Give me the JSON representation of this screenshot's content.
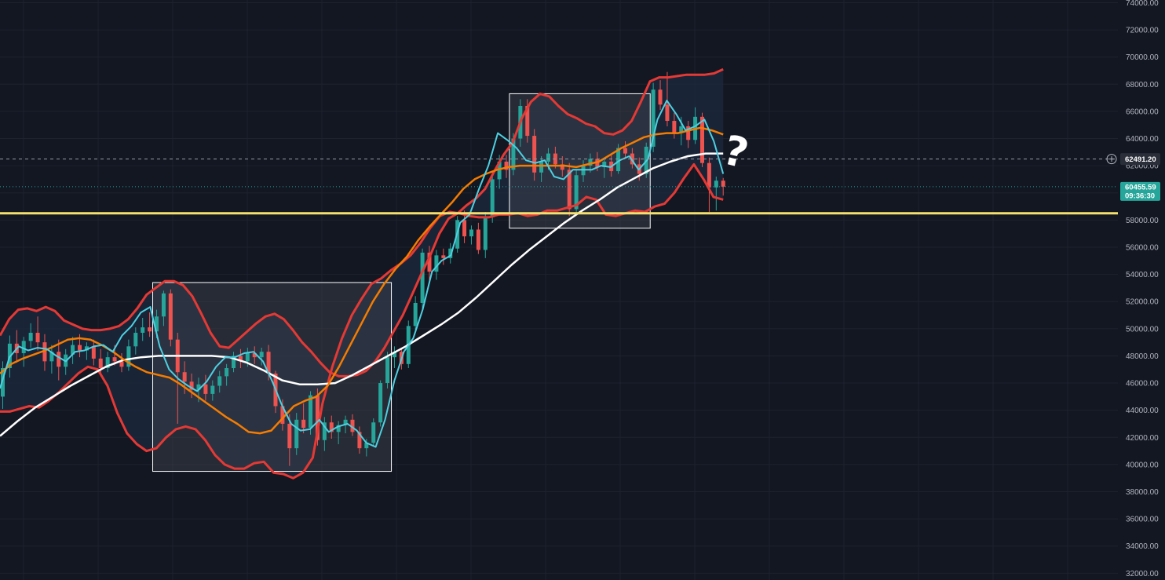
{
  "chart_data": {
    "type": "candlestick",
    "y_axis": {
      "range": [
        31500,
        74200
      ],
      "tick_step": 2000,
      "decimals": 2,
      "tick_labels": [
        "32000.00",
        "34000.00",
        "36000.00",
        "38000.00",
        "40000.00",
        "42000.00",
        "44000.00",
        "46000.00",
        "48000.00",
        "50000.00",
        "52000.00",
        "54000.00",
        "56000.00",
        "58000.00",
        "60000.00",
        "62000.00",
        "64000.00",
        "66000.00",
        "68000.00",
        "70000.00",
        "72000.00",
        "74000.00"
      ]
    },
    "grid": true,
    "colors": {
      "background": "#131722",
      "grid": "#1e222d",
      "up_candle": "#26a69a",
      "down_candle": "#ef5350",
      "bollinger_band": "#e53935",
      "band_fill": "#1c2a3f",
      "fast_ma": "#4dd0e1",
      "mid_ma": "#f57c00",
      "slow_ma": "#ffffff",
      "support_line": "#f5e06e",
      "box_fill": "#4a4d55",
      "price_badge": "#26a69a",
      "crosshair_badge": "#2a2e39"
    },
    "candles": [
      {
        "o": 45000,
        "h": 47600,
        "l": 44100,
        "c": 47100
      },
      {
        "o": 47100,
        "h": 49500,
        "l": 46400,
        "c": 48900
      },
      {
        "o": 48900,
        "h": 49900,
        "l": 47500,
        "c": 48200
      },
      {
        "o": 48200,
        "h": 49400,
        "l": 47200,
        "c": 49100
      },
      {
        "o": 49100,
        "h": 50400,
        "l": 48600,
        "c": 49700
      },
      {
        "o": 49700,
        "h": 50900,
        "l": 48400,
        "c": 49000
      },
      {
        "o": 49000,
        "h": 49600,
        "l": 46900,
        "c": 47600
      },
      {
        "o": 47600,
        "h": 48800,
        "l": 46700,
        "c": 48300
      },
      {
        "o": 48300,
        "h": 49200,
        "l": 46200,
        "c": 47200
      },
      {
        "o": 47200,
        "h": 48500,
        "l": 46600,
        "c": 48100
      },
      {
        "o": 48100,
        "h": 49400,
        "l": 47400,
        "c": 48800
      },
      {
        "o": 48800,
        "h": 49600,
        "l": 47900,
        "c": 48400
      },
      {
        "o": 48400,
        "h": 49000,
        "l": 47700,
        "c": 48700
      },
      {
        "o": 48700,
        "h": 49200,
        "l": 47300,
        "c": 47800
      },
      {
        "o": 47800,
        "h": 48500,
        "l": 46500,
        "c": 47100
      },
      {
        "o": 47100,
        "h": 48300,
        "l": 46800,
        "c": 47900
      },
      {
        "o": 47900,
        "h": 48800,
        "l": 47300,
        "c": 47600
      },
      {
        "o": 47600,
        "h": 48200,
        "l": 46800,
        "c": 47200
      },
      {
        "o": 47200,
        "h": 49200,
        "l": 46900,
        "c": 48700
      },
      {
        "o": 48700,
        "h": 50100,
        "l": 48100,
        "c": 49700
      },
      {
        "o": 49700,
        "h": 50800,
        "l": 49100,
        "c": 50100
      },
      {
        "o": 50100,
        "h": 51200,
        "l": 49400,
        "c": 49800
      },
      {
        "o": 49800,
        "h": 51400,
        "l": 49300,
        "c": 50900
      },
      {
        "o": 50900,
        "h": 52800,
        "l": 50200,
        "c": 52600
      },
      {
        "o": 52600,
        "h": 52900,
        "l": 48700,
        "c": 49200
      },
      {
        "o": 49200,
        "h": 49700,
        "l": 43000,
        "c": 46800
      },
      {
        "o": 46800,
        "h": 47600,
        "l": 45200,
        "c": 46100
      },
      {
        "o": 46100,
        "h": 46700,
        "l": 44900,
        "c": 45500
      },
      {
        "o": 45500,
        "h": 46400,
        "l": 44600,
        "c": 45900
      },
      {
        "o": 45900,
        "h": 46600,
        "l": 44700,
        "c": 45200
      },
      {
        "o": 45200,
        "h": 46200,
        "l": 44700,
        "c": 45800
      },
      {
        "o": 45800,
        "h": 46900,
        "l": 45300,
        "c": 46500
      },
      {
        "o": 46500,
        "h": 47400,
        "l": 45800,
        "c": 47100
      },
      {
        "o": 47100,
        "h": 48300,
        "l": 46800,
        "c": 48000
      },
      {
        "o": 48000,
        "h": 48500,
        "l": 47100,
        "c": 47600
      },
      {
        "o": 47600,
        "h": 48600,
        "l": 47200,
        "c": 48200
      },
      {
        "o": 48200,
        "h": 48700,
        "l": 47400,
        "c": 47900
      },
      {
        "o": 47900,
        "h": 48600,
        "l": 47300,
        "c": 48300
      },
      {
        "o": 48300,
        "h": 48800,
        "l": 46200,
        "c": 46700
      },
      {
        "o": 46700,
        "h": 46900,
        "l": 43800,
        "c": 44300
      },
      {
        "o": 44300,
        "h": 44800,
        "l": 42500,
        "c": 43000
      },
      {
        "o": 43000,
        "h": 43700,
        "l": 39900,
        "c": 41200
      },
      {
        "o": 41200,
        "h": 43800,
        "l": 40700,
        "c": 43300
      },
      {
        "o": 43300,
        "h": 44500,
        "l": 42300,
        "c": 42700
      },
      {
        "o": 42700,
        "h": 45400,
        "l": 42200,
        "c": 45100
      },
      {
        "o": 45100,
        "h": 45600,
        "l": 41400,
        "c": 41800
      },
      {
        "o": 41800,
        "h": 43500,
        "l": 41000,
        "c": 43100
      },
      {
        "o": 43100,
        "h": 43600,
        "l": 41900,
        "c": 42400
      },
      {
        "o": 42400,
        "h": 43200,
        "l": 41500,
        "c": 42900
      },
      {
        "o": 42900,
        "h": 43600,
        "l": 42300,
        "c": 43300
      },
      {
        "o": 43300,
        "h": 43700,
        "l": 42100,
        "c": 42400
      },
      {
        "o": 42400,
        "h": 42800,
        "l": 40800,
        "c": 41200
      },
      {
        "o": 41200,
        "h": 41900,
        "l": 40600,
        "c": 41600
      },
      {
        "o": 41600,
        "h": 43400,
        "l": 41400,
        "c": 43100
      },
      {
        "o": 43100,
        "h": 46200,
        "l": 42800,
        "c": 46000
      },
      {
        "o": 46000,
        "h": 48300,
        "l": 45600,
        "c": 47900
      },
      {
        "o": 47900,
        "h": 48700,
        "l": 47100,
        "c": 48300
      },
      {
        "o": 48300,
        "h": 48600,
        "l": 47000,
        "c": 47400
      },
      {
        "o": 47400,
        "h": 50600,
        "l": 47100,
        "c": 50200
      },
      {
        "o": 50200,
        "h": 52400,
        "l": 49800,
        "c": 51900
      },
      {
        "o": 51900,
        "h": 55900,
        "l": 51400,
        "c": 55600
      },
      {
        "o": 55600,
        "h": 56100,
        "l": 53400,
        "c": 54200
      },
      {
        "o": 54200,
        "h": 55800,
        "l": 53600,
        "c": 55400
      },
      {
        "o": 55400,
        "h": 55900,
        "l": 54700,
        "c": 55200
      },
      {
        "o": 55200,
        "h": 56300,
        "l": 54800,
        "c": 55900
      },
      {
        "o": 55900,
        "h": 58300,
        "l": 55600,
        "c": 58000
      },
      {
        "o": 58000,
        "h": 58700,
        "l": 56300,
        "c": 56800
      },
      {
        "o": 56800,
        "h": 57600,
        "l": 56200,
        "c": 57300
      },
      {
        "o": 57300,
        "h": 57800,
        "l": 55500,
        "c": 55800
      },
      {
        "o": 55800,
        "h": 58600,
        "l": 55200,
        "c": 58200
      },
      {
        "o": 58200,
        "h": 61400,
        "l": 57800,
        "c": 61000
      },
      {
        "o": 61000,
        "h": 62800,
        "l": 60300,
        "c": 62300
      },
      {
        "o": 62300,
        "h": 62800,
        "l": 61100,
        "c": 61700
      },
      {
        "o": 61700,
        "h": 64400,
        "l": 61300,
        "c": 64000
      },
      {
        "o": 64000,
        "h": 66900,
        "l": 63400,
        "c": 66400
      },
      {
        "o": 66400,
        "h": 66900,
        "l": 63700,
        "c": 64200
      },
      {
        "o": 64200,
        "h": 64700,
        "l": 60900,
        "c": 61500
      },
      {
        "o": 61500,
        "h": 62700,
        "l": 60800,
        "c": 62300
      },
      {
        "o": 62300,
        "h": 63300,
        "l": 61700,
        "c": 62900
      },
      {
        "o": 62900,
        "h": 63400,
        "l": 61800,
        "c": 62100
      },
      {
        "o": 62100,
        "h": 62700,
        "l": 61200,
        "c": 61700
      },
      {
        "o": 61700,
        "h": 62200,
        "l": 58300,
        "c": 58800
      },
      {
        "o": 58800,
        "h": 61700,
        "l": 58400,
        "c": 61300
      },
      {
        "o": 61300,
        "h": 62400,
        "l": 60800,
        "c": 62000
      },
      {
        "o": 62000,
        "h": 62900,
        "l": 61500,
        "c": 62500
      },
      {
        "o": 62500,
        "h": 63000,
        "l": 61600,
        "c": 61900
      },
      {
        "o": 61900,
        "h": 62600,
        "l": 61100,
        "c": 62300
      },
      {
        "o": 62300,
        "h": 62800,
        "l": 61200,
        "c": 61600
      },
      {
        "o": 61600,
        "h": 63600,
        "l": 61400,
        "c": 63300
      },
      {
        "o": 63300,
        "h": 63800,
        "l": 62500,
        "c": 62900
      },
      {
        "o": 62900,
        "h": 63300,
        "l": 61800,
        "c": 62100
      },
      {
        "o": 62100,
        "h": 62600,
        "l": 60900,
        "c": 61400
      },
      {
        "o": 61400,
        "h": 63700,
        "l": 61100,
        "c": 63400
      },
      {
        "o": 63400,
        "h": 68100,
        "l": 63000,
        "c": 67600
      },
      {
        "o": 67600,
        "h": 68300,
        "l": 66100,
        "c": 66500
      },
      {
        "o": 66500,
        "h": 68900,
        "l": 64900,
        "c": 65300
      },
      {
        "o": 65300,
        "h": 65900,
        "l": 64000,
        "c": 64400
      },
      {
        "o": 64400,
        "h": 65600,
        "l": 63500,
        "c": 64900
      },
      {
        "o": 64900,
        "h": 65300,
        "l": 63300,
        "c": 63900
      },
      {
        "o": 63900,
        "h": 66300,
        "l": 63600,
        "c": 65600
      },
      {
        "o": 65600,
        "h": 65900,
        "l": 61900,
        "c": 62200
      },
      {
        "o": 62200,
        "h": 62600,
        "l": 58600,
        "c": 60400
      },
      {
        "o": 60400,
        "h": 61200,
        "l": 58700,
        "c": 60900
      },
      {
        "o": 60900,
        "h": 61100,
        "l": 59800,
        "c": 60456
      }
    ],
    "overlay_series": [
      {
        "key": "upper_band",
        "values": [
          49500,
          50700,
          51400,
          51500,
          51300,
          51600,
          51300,
          50600,
          50300,
          50000,
          49900,
          49900,
          50000,
          50200,
          50700,
          51500,
          52500,
          53000,
          53500,
          53500,
          53200,
          52400,
          51100,
          49700,
          48700,
          48600,
          49200,
          49800,
          50400,
          50900,
          51100,
          50700,
          49900,
          49000,
          48300,
          47500,
          46800,
          46500,
          46500,
          46600,
          46900,
          47600,
          48600,
          49800,
          51000,
          52500,
          54000,
          55400,
          57000,
          58100,
          58500,
          59100,
          59600,
          60300,
          61600,
          62800,
          63700,
          65500,
          66700,
          67300,
          67100,
          66400,
          65800,
          65500,
          65100,
          64900,
          64400,
          64300,
          64600,
          65300,
          66700,
          68200,
          68500,
          68500,
          68600,
          68700,
          68700,
          68700,
          68800,
          69100
        ]
      },
      {
        "key": "lower_band",
        "values": [
          43900,
          43900,
          44100,
          44300,
          44200,
          44700,
          45300,
          46000,
          46700,
          47200,
          47000,
          45800,
          43800,
          42300,
          41500,
          41000,
          41200,
          42000,
          42600,
          42800,
          42600,
          41800,
          40700,
          40000,
          39700,
          39700,
          40100,
          40200,
          39400,
          39300,
          39000,
          39400,
          40500,
          44500,
          47200,
          49300,
          51000,
          52200,
          53300,
          53700,
          54300,
          54800,
          55400,
          56300,
          57400,
          58300,
          58600,
          58500,
          58300,
          58200,
          58200,
          58400,
          58400,
          58500,
          58300,
          58400,
          58700,
          58700,
          58900,
          59100,
          59700,
          59500,
          58400,
          58300,
          58500,
          58700,
          58600,
          59000,
          59200,
          60000,
          61100,
          62100,
          61000,
          59700,
          59500
        ]
      },
      {
        "key": "middle_ma",
        "values": [
          46700,
          47400,
          47800,
          48100,
          48400,
          48800,
          49200,
          49300,
          49200,
          48800,
          48300,
          47700,
          47200,
          46800,
          46600,
          46400,
          45900,
          45300,
          44700,
          44100,
          43500,
          43000,
          42400,
          42300,
          42500,
          43400,
          44300,
          44700,
          45000,
          45800,
          47200,
          48800,
          50400,
          52000,
          53300,
          54400,
          55300,
          56500,
          57500,
          58400,
          59300,
          60300,
          61000,
          61400,
          61700,
          61900,
          62000,
          62000,
          62000,
          62000,
          62000,
          61900,
          62100,
          62300,
          62800,
          63300,
          63700,
          64100,
          64300,
          64400,
          64400,
          64600,
          64800,
          64600,
          64300
        ]
      },
      {
        "key": "fast_ma",
        "values": [
          45600,
          47900,
          48700,
          48400,
          48600,
          48500,
          48000,
          47600,
          48300,
          48400,
          48700,
          48800,
          48300,
          49500,
          50200,
          51200,
          51600,
          48700,
          47000,
          46300,
          45800,
          45400,
          46100,
          47200,
          47900,
          47900,
          48200,
          48300,
          47600,
          46100,
          44400,
          43000,
          42500,
          42600,
          43300,
          42400,
          42800,
          43000,
          42500,
          41600,
          41300,
          43300,
          46200,
          48300,
          49300,
          51400,
          54200,
          55000,
          55400,
          57800,
          58400,
          60300,
          62000,
          64400,
          63900,
          63300,
          62400,
          62200,
          62400,
          61200,
          61000,
          61700,
          61700,
          61700,
          62000,
          61900,
          62400,
          62700,
          61700,
          62500,
          65400,
          66800,
          65800,
          64600,
          64900,
          65400,
          63800,
          61400
        ]
      },
      {
        "key": "slow_ma",
        "values": [
          42100,
          43200,
          44200,
          45000,
          45800,
          46500,
          47200,
          47700,
          47900,
          48000,
          48000,
          48000,
          48000,
          47900,
          47500,
          46900,
          46200,
          45900,
          45900,
          46000,
          46600,
          47300,
          48000,
          48700,
          49500,
          50300,
          51200,
          52300,
          53500,
          54700,
          55800,
          56800,
          57800,
          58700,
          59500,
          60400,
          61100,
          61800,
          62300,
          62700,
          62900,
          62900
        ]
      }
    ],
    "support_level": 58500,
    "dashed_level": 62491.2,
    "last_price": 60455.59,
    "crosshair_label": "62491.20",
    "last_price_label": "60455.59",
    "countdown_label": "09:36:30",
    "annotation_text": "?",
    "highlight_ranges": [
      {
        "from_candle": 22,
        "to_candle": 55,
        "low": 39500,
        "high": 53400
      },
      {
        "from_candle": 73,
        "to_candle": 92,
        "low": 57400,
        "high": 67300
      }
    ]
  }
}
